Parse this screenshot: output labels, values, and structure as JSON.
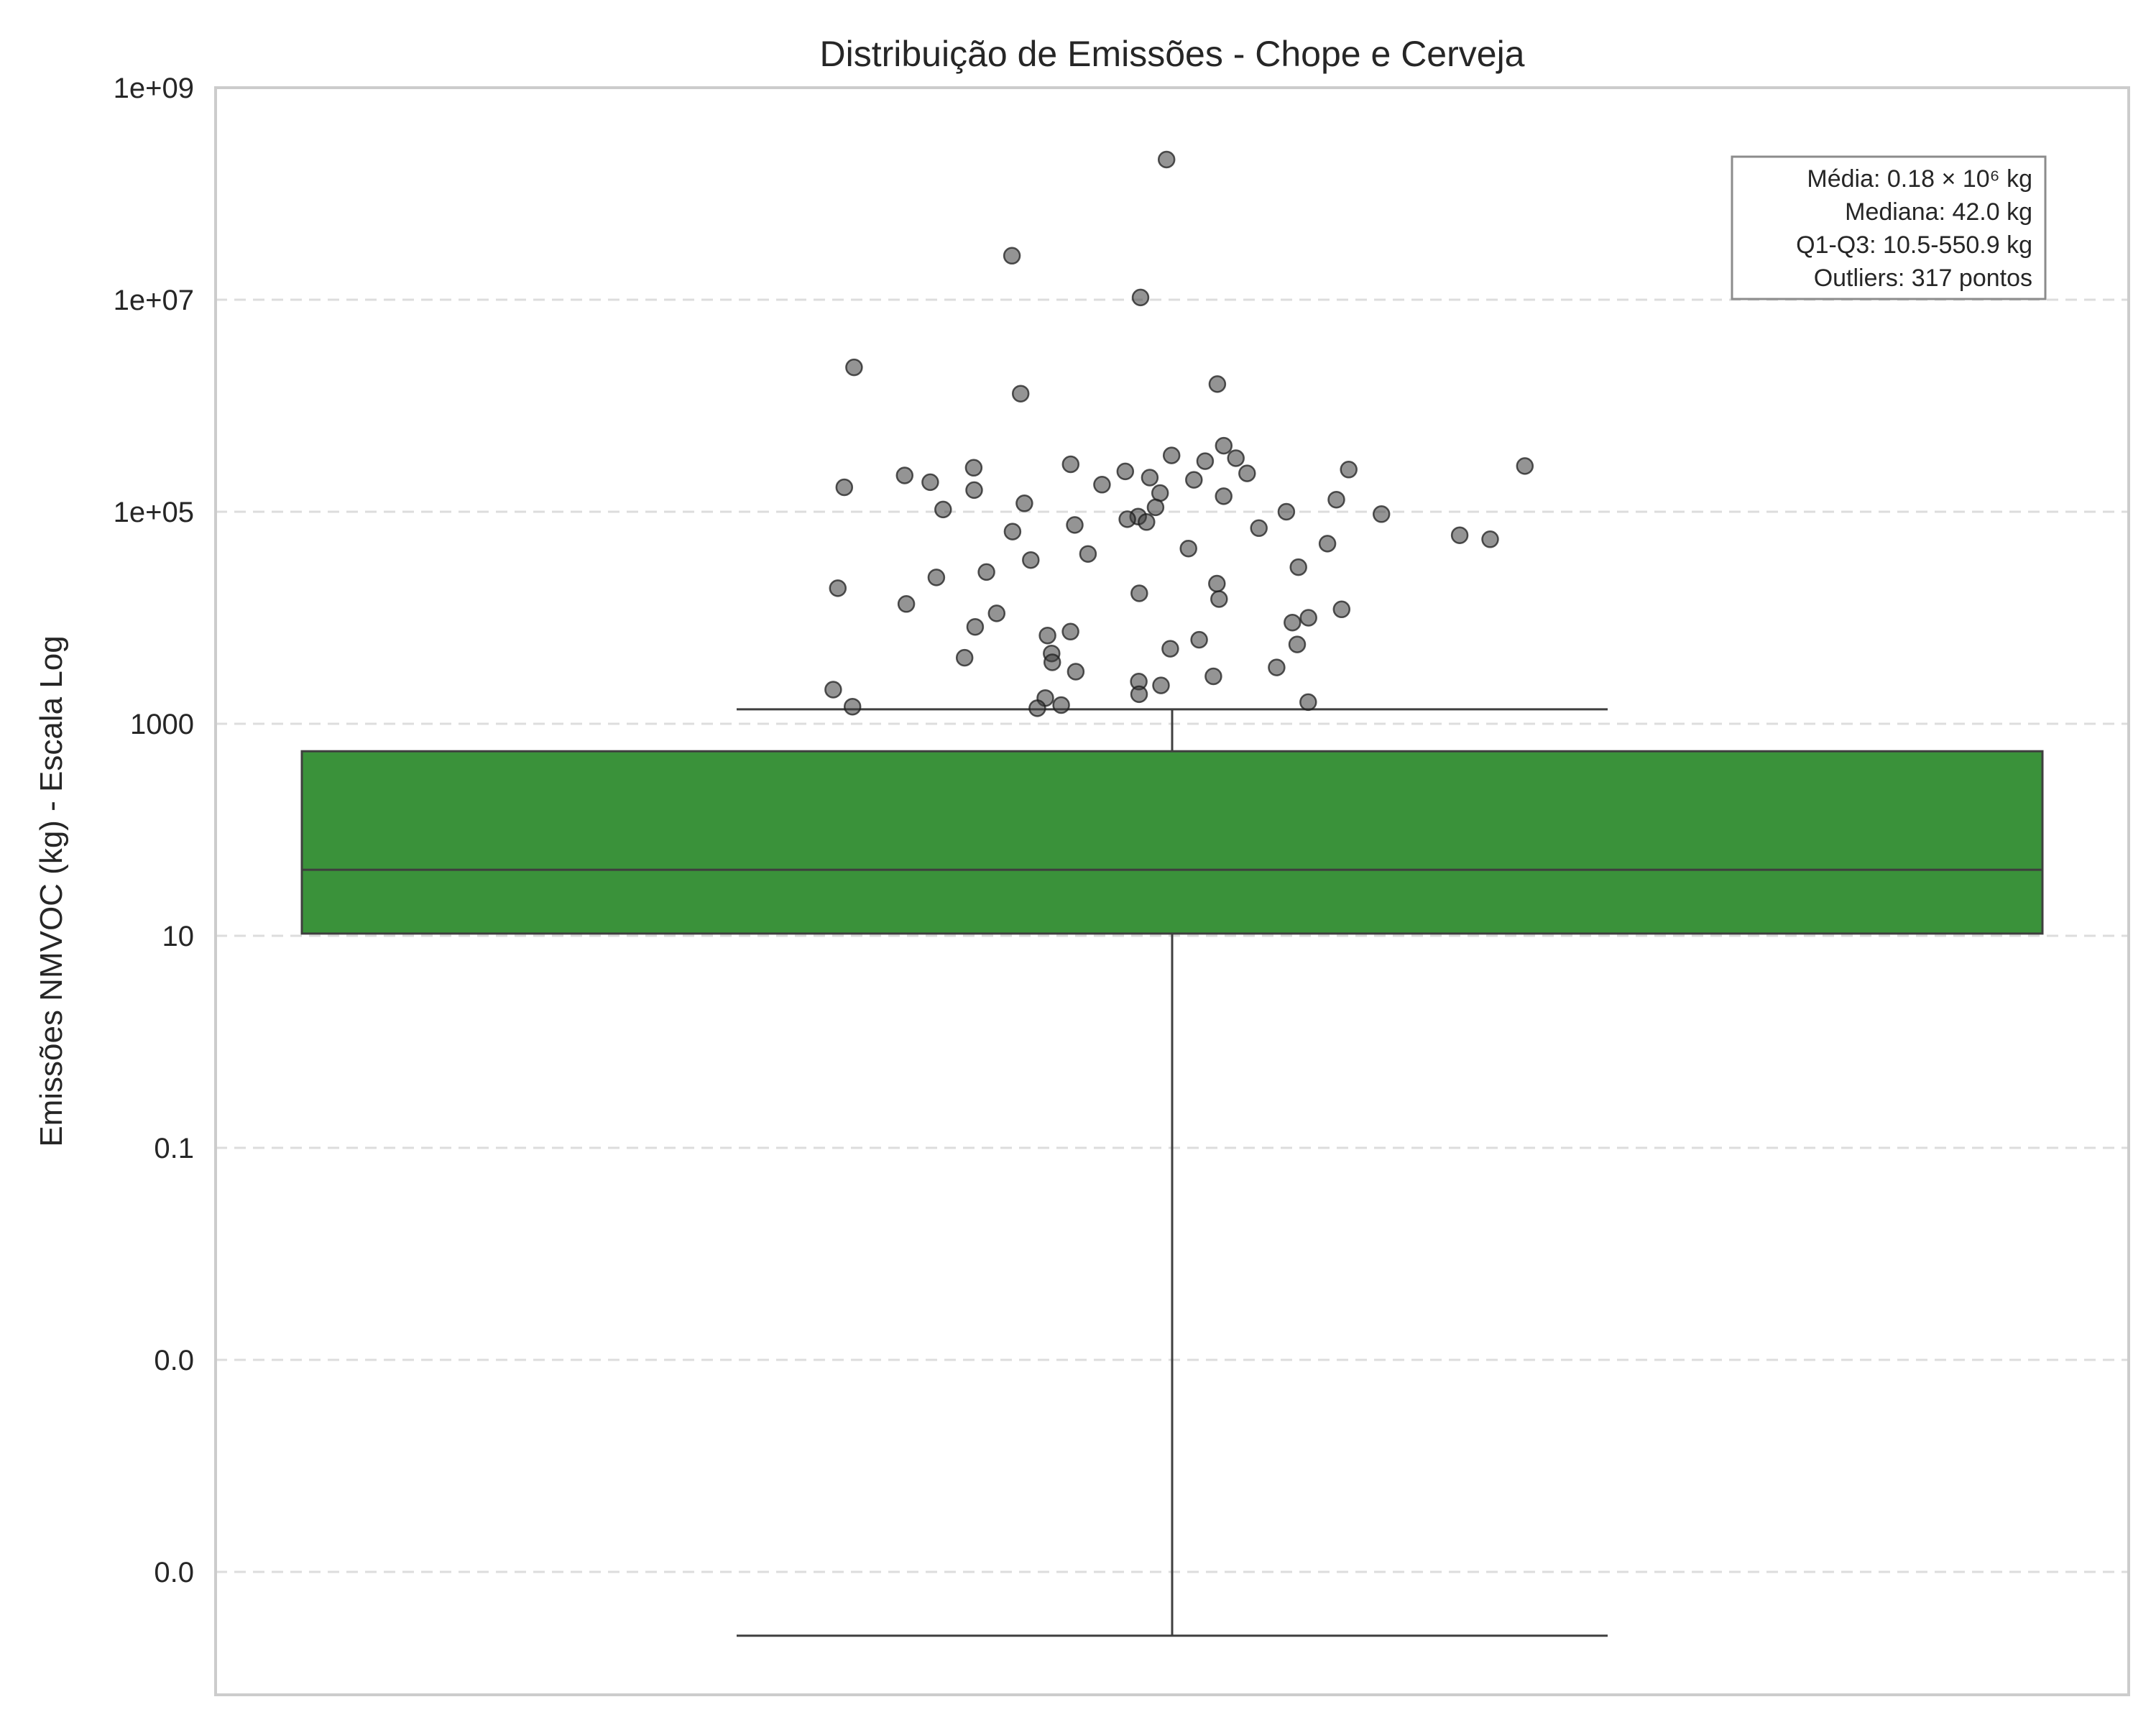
{
  "chart_data": {
    "type": "box",
    "title": "Distribuição de Emissões - Chope e Cerveja",
    "xlabel": "",
    "ylabel": "Emissões NMVOC (kg) - Escala Log",
    "yscale": "log",
    "ylim": [
      3e-07,
      1000000000
    ],
    "grid": "horizontal-dashed",
    "y_ticks": [
      {
        "value": 1e-05,
        "label": "0.0"
      },
      {
        "value": 0.001,
        "label": "0.0"
      },
      {
        "value": 0.1,
        "label": "0.1"
      },
      {
        "value": 10,
        "label": "10"
      },
      {
        "value": 1000,
        "label": "1000"
      },
      {
        "value": 100000,
        "label": "1e+05"
      },
      {
        "value": 10000000,
        "label": "1e+07"
      },
      {
        "value": 1000000000,
        "label": "1e+09"
      }
    ],
    "box": {
      "color": "#3a923a",
      "q1": 10.5,
      "median": 42.0,
      "q3": 550.9,
      "whisker_low": 2.5e-06,
      "whisker_high": 1370
    },
    "outliers": {
      "count": 317,
      "values": [
        210000000.0,
        26000000.0,
        10500000.0,
        2300000.0,
        1600000.0,
        1300000.0,
        420000.0,
        340000.0,
        320000.0,
        300000.0,
        280000.0,
        270000.0,
        260000.0,
        250000.0,
        240000.0,
        230000.0,
        220000.0,
        210000.0,
        200000.0,
        190000.0,
        180000.0,
        170000.0,
        160000.0,
        150000.0,
        140000.0,
        130000.0,
        120000.0,
        110000.0,
        105000.0,
        100000.0,
        95000.0,
        90000.0,
        85000.0,
        80000.0,
        75000.0,
        70000.0,
        65000.0,
        60000.0,
        55000.0,
        50000.0,
        45000.0,
        40000.0,
        35000.0,
        30000.0,
        27000.0,
        24000.0,
        21000.0,
        19000.0,
        17000.0,
        15000.0,
        13500.0,
        12000.0,
        11000.0,
        10000.0,
        9000.0,
        8200.0,
        7400.0,
        6800.0,
        6200.0,
        5600.0,
        5100.0,
        4600.0,
        4200.0,
        3800.0,
        3400.0,
        3100.0,
        2800.0,
        2500.0,
        2300.0,
        2100.0,
        1900.0,
        1750.0,
        1600.0,
        1500.0,
        1450.0,
        1400.0
      ]
    },
    "annotation": {
      "lines": [
        "Média: 0.18 × 10⁶ kg",
        "Mediana: 42.0 kg",
        "Q1-Q3: 10.5-550.9 kg",
        "Outliers: 317 pontos"
      ],
      "placement": "top-right"
    }
  }
}
